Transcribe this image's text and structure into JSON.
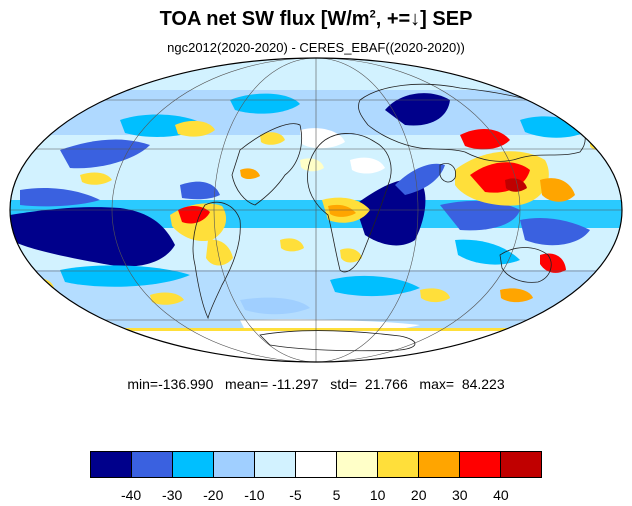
{
  "title": {
    "main": "TOA net SW flux [W/m",
    "sup": "2",
    "rest": ", +=↓]  SEP"
  },
  "subtitle": "ngc2012(2020-2020) - CERES_EBAF((2020-2020))",
  "stats": {
    "min": "-136.990",
    "mean": "-11.297",
    "std": "21.766",
    "max": "84.223",
    "min_label": "min=",
    "mean_label": "mean=",
    "std_label": "std=",
    "max_label": "max="
  },
  "colorbar": {
    "colors": [
      "#00008b",
      "#3a61e0",
      "#00bfff",
      "#a0cfff",
      "#d2f2ff",
      "#ffffff",
      "#ffffc8",
      "#ffdf3a",
      "#ffa500",
      "#ff0000",
      "#c00000"
    ],
    "labels": [
      "-40",
      "-30",
      "-20",
      "-10",
      "-5",
      "5",
      "10",
      "20",
      "30",
      "40"
    ]
  }
}
